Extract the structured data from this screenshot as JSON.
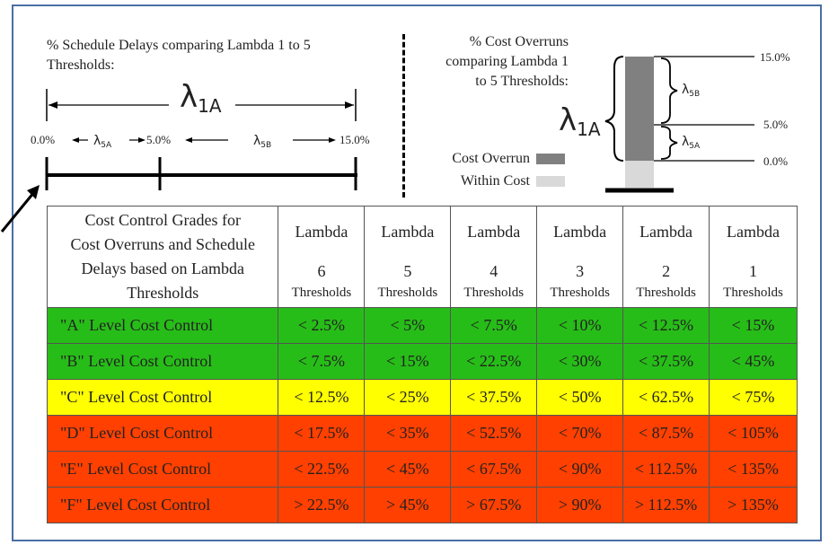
{
  "schedule": {
    "title_line1": "% Schedule Delays comparing Lambda 1 to 5",
    "title_line2": "Thresholds:",
    "lambda_1a": "λ",
    "lambda_1a_sub": "1A",
    "lambda_5a": "λ",
    "lambda_5a_sub": "5A",
    "lambda_5b": "λ",
    "lambda_5b_sub": "5B",
    "tick_0": "0.0%",
    "tick_5": "5.0%",
    "tick_15": "15.0%"
  },
  "cost": {
    "title_line1": "% Cost Overruns",
    "title_line2": "comparing Lambda 1",
    "title_line3": "to 5 Thresholds:",
    "lambda_1a": "λ",
    "lambda_1a_sub": "1A",
    "lambda_5a": "λ",
    "lambda_5a_sub": "5A",
    "lambda_5b": "λ",
    "lambda_5b_sub": "5B",
    "tick_15": "15.0%",
    "tick_5": "5.0%",
    "tick_0": "0.0%",
    "legend_overrun": "Cost Overrun",
    "legend_within": "Within Cost",
    "overrun_color": "#808080",
    "within_color": "#d9d9d9"
  },
  "table": {
    "header_text": [
      "Cost Control Grades for",
      "Cost Overruns and Schedule",
      "Delays based on Lambda",
      "Thresholds"
    ],
    "columns": [
      {
        "title": "Lambda",
        "num": "6",
        "sub": "Thresholds"
      },
      {
        "title": "Lambda",
        "num": "5",
        "sub": "Thresholds"
      },
      {
        "title": "Lambda",
        "num": "4",
        "sub": "Thresholds"
      },
      {
        "title": "Lambda",
        "num": "3",
        "sub": "Thresholds"
      },
      {
        "title": "Lambda",
        "num": "2",
        "sub": "Thresholds"
      },
      {
        "title": "Lambda",
        "num": "1",
        "sub": "Thresholds"
      }
    ],
    "rows": [
      {
        "label": "\"A\" Level Cost Control",
        "color": "#27bd18",
        "values": [
          "< 2.5%",
          "< 5%",
          "< 7.5%",
          "< 10%",
          "< 12.5%",
          "< 15%"
        ]
      },
      {
        "label": "\"B\" Level Cost Control",
        "color": "#27bd18",
        "values": [
          "< 7.5%",
          "< 15%",
          "< 22.5%",
          "< 30%",
          "< 37.5%",
          "< 45%"
        ]
      },
      {
        "label": "\"C\" Level Cost Control",
        "color": "#ffff00",
        "values": [
          "< 12.5%",
          "< 25%",
          "< 37.5%",
          "< 50%",
          "< 62.5%",
          "< 75%"
        ]
      },
      {
        "label": "\"D\" Level Cost Control",
        "color": "#ff4000",
        "values": [
          "< 17.5%",
          "< 35%",
          "< 52.5%",
          "< 70%",
          "< 87.5%",
          "< 105%"
        ]
      },
      {
        "label": "\"E\" Level Cost Control",
        "color": "#ff4000",
        "values": [
          "< 22.5%",
          "< 45%",
          "< 67.5%",
          "< 90%",
          "< 112.5%",
          "< 135%"
        ]
      },
      {
        "label": "\"F\" Level Cost Control",
        "color": "#ff4000",
        "values": [
          "> 22.5%",
          "> 45%",
          "> 67.5%",
          "> 90%",
          "> 112.5%",
          "> 135%"
        ]
      }
    ]
  }
}
